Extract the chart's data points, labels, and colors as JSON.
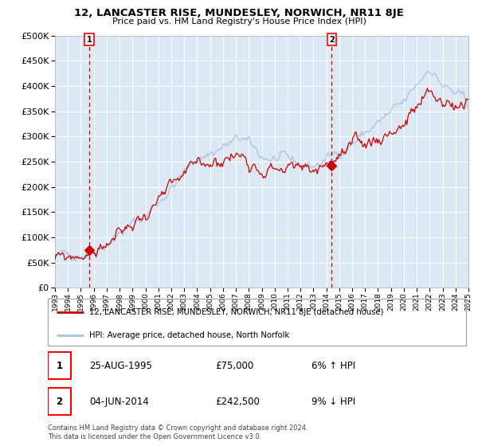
{
  "title": "12, LANCASTER RISE, MUNDESLEY, NORWICH, NR11 8JE",
  "subtitle": "Price paid vs. HM Land Registry's House Price Index (HPI)",
  "legend_line1": "12, LANCASTER RISE, MUNDESLEY, NORWICH, NR11 8JE (detached house)",
  "legend_line2": "HPI: Average price, detached house, North Norfolk",
  "sale1_date": "25-AUG-1995",
  "sale1_price": 75000,
  "sale1_label": "6% ↑ HPI",
  "sale2_date": "04-JUN-2014",
  "sale2_price": 242500,
  "sale2_label": "9% ↓ HPI",
  "footer": "Contains HM Land Registry data © Crown copyright and database right 2024.\nThis data is licensed under the Open Government Licence v3.0.",
  "hpi_color": "#a8c4e0",
  "price_color": "#cc0000",
  "bg_color": "#dce9f5",
  "grid_color": "#ffffff",
  "ylim": [
    0,
    500000
  ],
  "yticks": [
    0,
    50000,
    100000,
    150000,
    200000,
    250000,
    300000,
    350000,
    400000,
    450000,
    500000
  ],
  "sale1_x": 1995.65,
  "sale2_x": 2014.42,
  "xmin": 1993,
  "xmax": 2025
}
